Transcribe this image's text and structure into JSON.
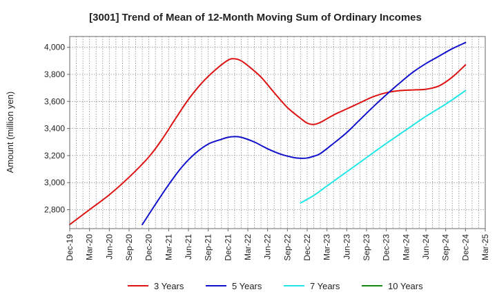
{
  "chart_data": {
    "type": "line",
    "title": "[3001]  Trend of Mean of 12-Month Moving Sum of Ordinary Incomes",
    "xlabel": "",
    "ylabel": "Amount (million yen)",
    "ylim": [
      2660,
      4080
    ],
    "y_ticks": [
      2800,
      3000,
      3200,
      3400,
      3600,
      3800,
      4000
    ],
    "y_tick_labels": [
      "2,800",
      "3,000",
      "3,200",
      "3,400",
      "3,600",
      "3,800",
      "4,000"
    ],
    "x_range": [
      0,
      63
    ],
    "x_ticks": [
      0,
      3,
      6,
      9,
      12,
      15,
      18,
      21,
      24,
      27,
      30,
      33,
      36,
      39,
      42,
      45,
      48,
      51,
      54,
      57,
      60,
      63
    ],
    "x_tick_labels": [
      "Dec-19",
      "Mar-20",
      "Jun-20",
      "Sep-20",
      "Dec-20",
      "Mar-21",
      "Jun-21",
      "Sep-21",
      "Dec-21",
      "Mar-22",
      "Jun-22",
      "Sep-22",
      "Dec-22",
      "Mar-23",
      "Jun-23",
      "Sep-23",
      "Dec-23",
      "Mar-24",
      "Jun-24",
      "Sep-24",
      "Dec-24",
      "Mar-25"
    ],
    "grid": true,
    "legend_position": "bottom",
    "series": [
      {
        "name": "3 Years",
        "color": "#dd1111",
        "x": [
          0,
          3,
          6,
          9,
          12,
          14,
          16,
          18,
          20,
          22,
          24,
          25,
          26,
          27,
          29,
          31,
          33,
          35,
          36,
          37,
          38,
          40,
          42,
          44,
          46,
          48,
          50,
          52,
          54,
          56,
          58,
          60
        ],
        "values": [
          2690,
          2800,
          2910,
          3040,
          3190,
          3320,
          3470,
          3615,
          3735,
          3830,
          3905,
          3915,
          3900,
          3865,
          3780,
          3665,
          3555,
          3475,
          3440,
          3430,
          3445,
          3500,
          3545,
          3590,
          3635,
          3665,
          3680,
          3685,
          3690,
          3715,
          3780,
          3870
        ]
      },
      {
        "name": "5 Years",
        "color": "#1111cc",
        "x": [
          11,
          13,
          15,
          17,
          19,
          21,
          23,
          24,
          25,
          26,
          28,
          30,
          32,
          34,
          35,
          36,
          37,
          38,
          40,
          42,
          44,
          46,
          48,
          50,
          52,
          54,
          56,
          58,
          60
        ],
        "values": [
          2690,
          2840,
          2985,
          3115,
          3215,
          3285,
          3320,
          3335,
          3340,
          3335,
          3300,
          3250,
          3210,
          3185,
          3180,
          3182,
          3195,
          3215,
          3290,
          3370,
          3465,
          3560,
          3650,
          3735,
          3815,
          3880,
          3935,
          3990,
          4035
        ]
      },
      {
        "name": "7 Years",
        "color": "#22e5e5",
        "x": [
          35,
          37,
          39,
          42,
          45,
          48,
          51,
          54,
          57,
          60
        ],
        "values": [
          2850,
          2905,
          2975,
          3080,
          3185,
          3290,
          3390,
          3490,
          3580,
          3680
        ]
      },
      {
        "name": "10 Years",
        "color": "#118811",
        "x": [],
        "values": []
      }
    ]
  }
}
